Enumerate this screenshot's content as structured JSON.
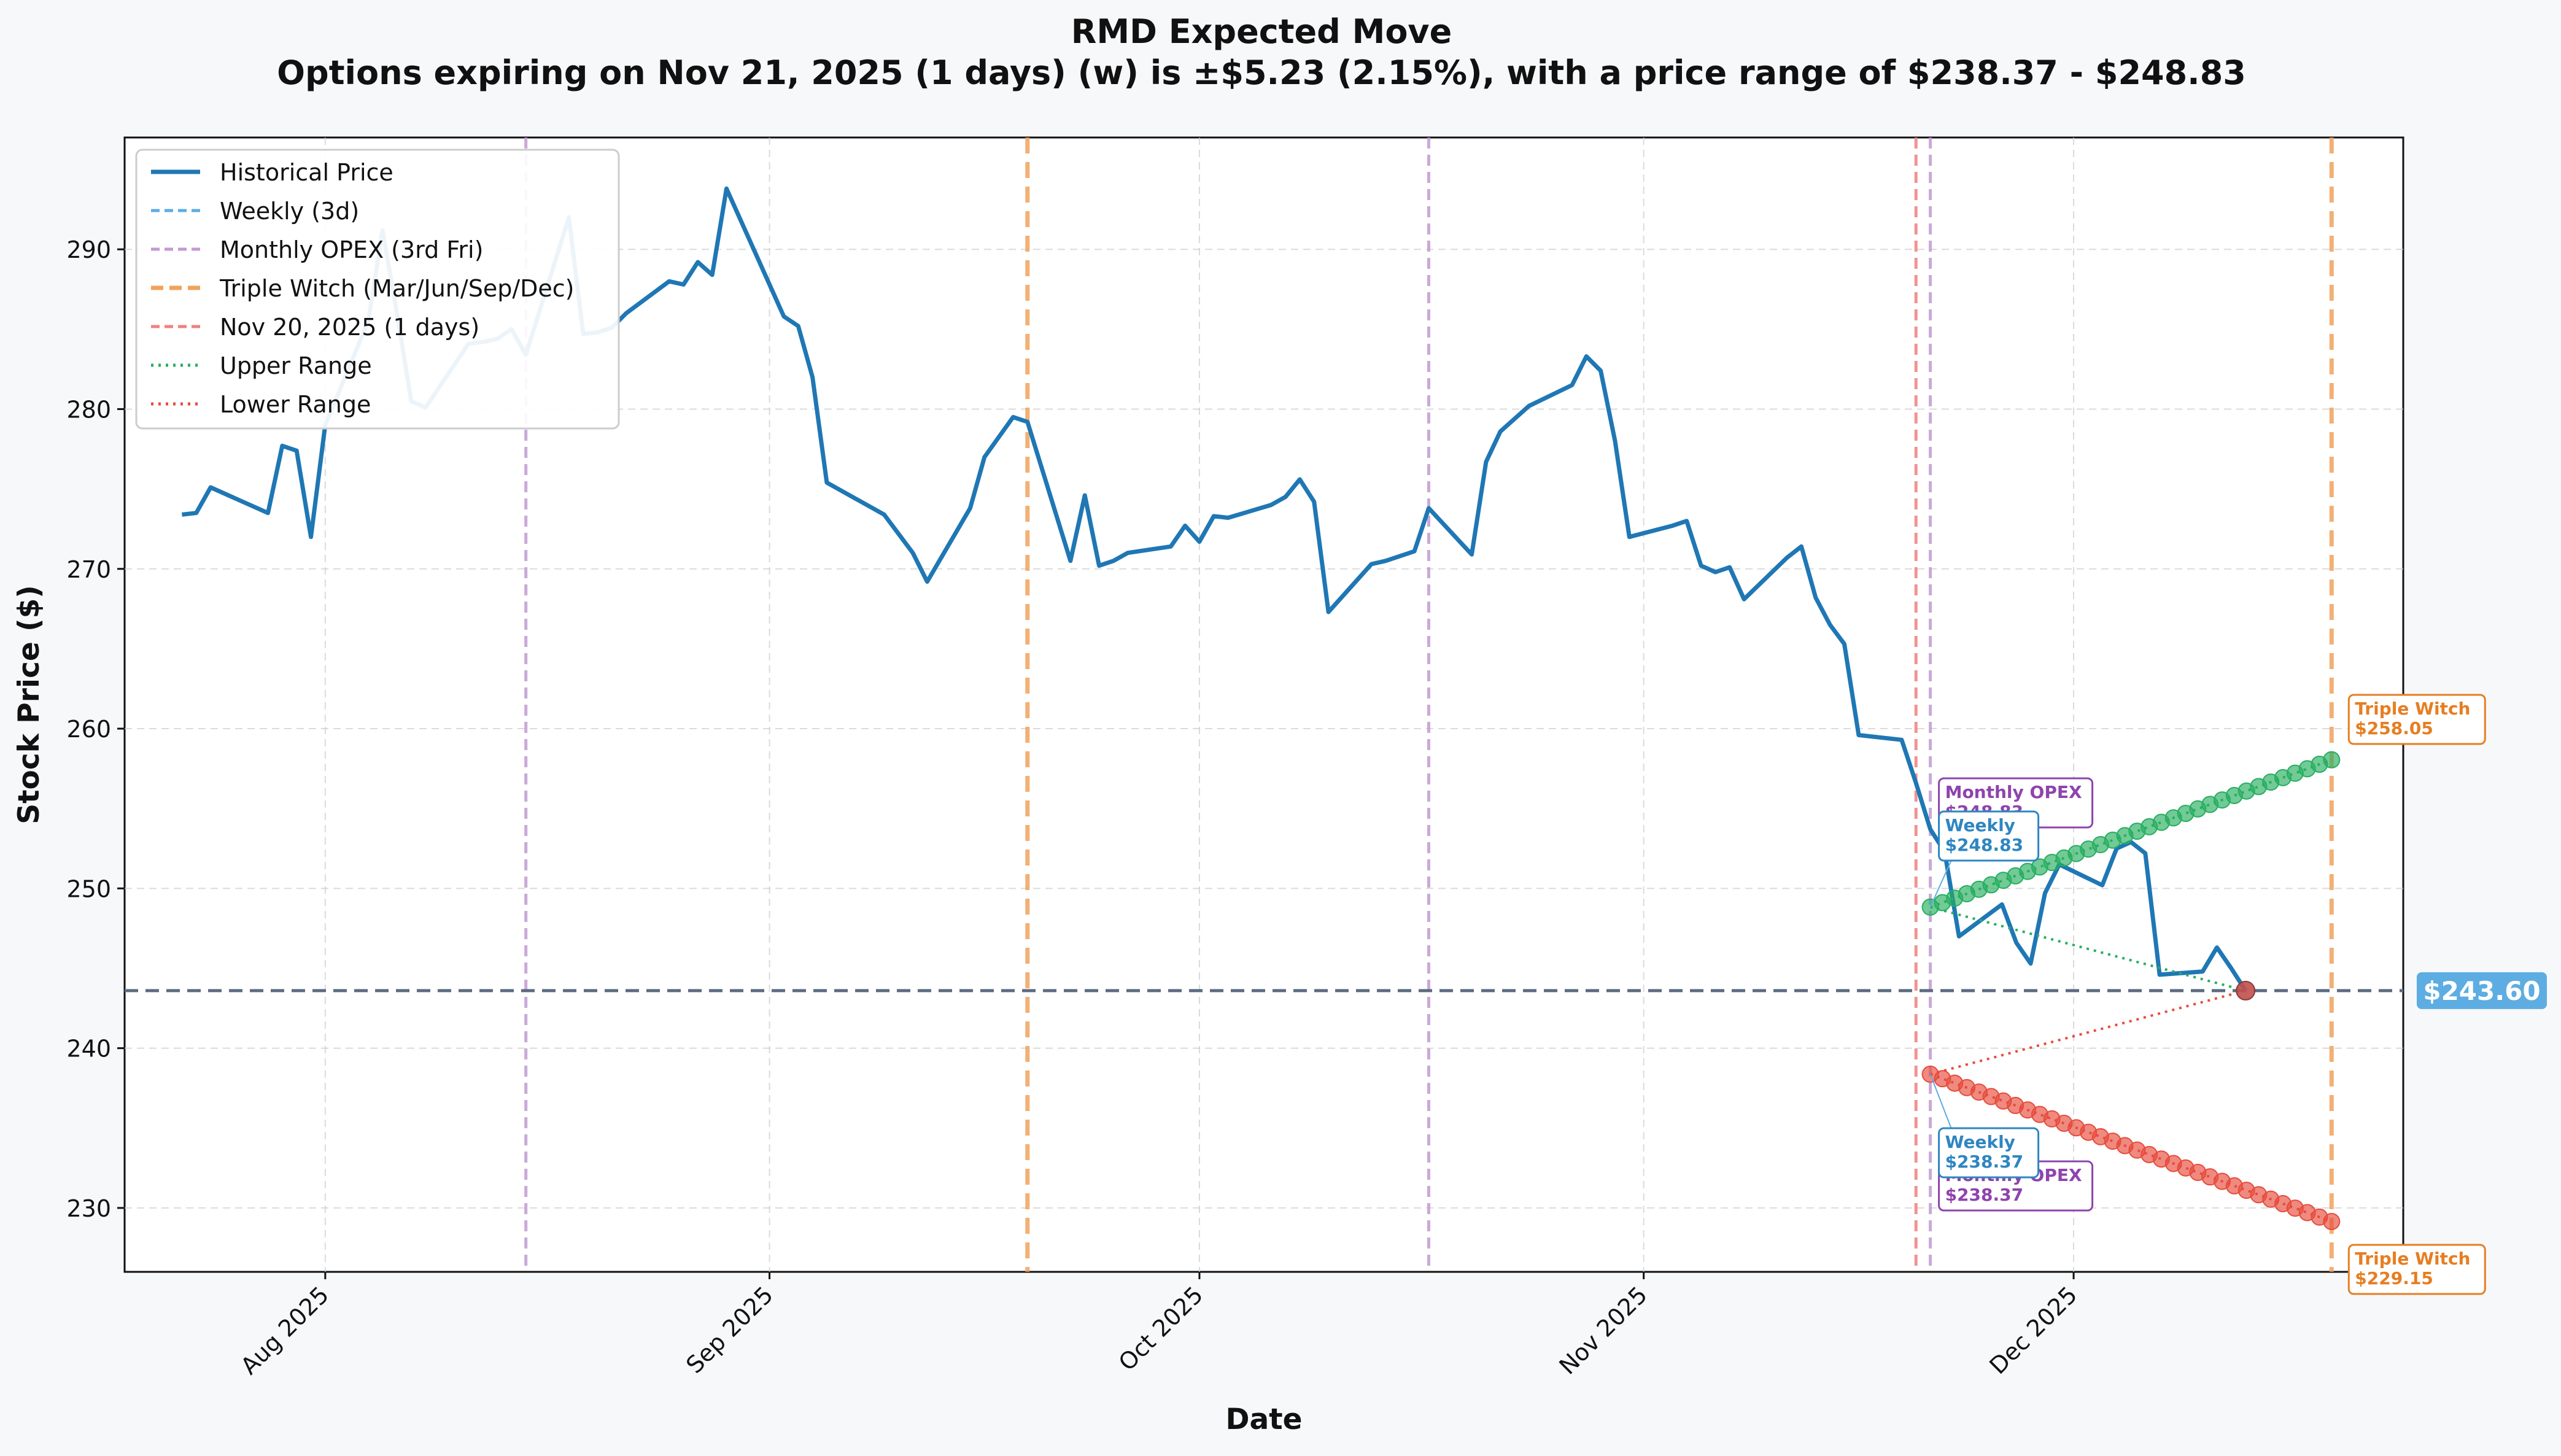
{
  "chart_data": {
    "type": "line",
    "title": "RMD Expected Move",
    "subtitle": "Options expiring on Nov 21, 2025 (1 days) (w) is ±$5.23 (2.15%), with a price range of $238.37 - $248.83",
    "xlabel": "Date",
    "ylabel": "Stock Price ($)",
    "xlim": [
      "2025-07-18",
      "2025-12-24"
    ],
    "ylim": [
      226,
      297
    ],
    "x_ticks": [
      {
        "date": "2025-08-01",
        "label": "Aug 2025"
      },
      {
        "date": "2025-09-01",
        "label": "Sep 2025"
      },
      {
        "date": "2025-10-01",
        "label": "Oct 2025"
      },
      {
        "date": "2025-11-01",
        "label": "Nov 2025"
      },
      {
        "date": "2025-12-01",
        "label": "Dec 2025"
      }
    ],
    "y_ticks": [
      230,
      240,
      250,
      260,
      270,
      280,
      290
    ],
    "grid": true,
    "legend_position": "top-left",
    "legend": [
      {
        "label": "Historical Price",
        "color": "#1f77b4",
        "style": "solid"
      },
      {
        "label": "Weekly (3d)",
        "color": "#5dade2",
        "style": "dashed"
      },
      {
        "label": "Monthly OPEX (3rd Fri)",
        "color": "#c39bd3",
        "style": "dashed"
      },
      {
        "label": "Triple Witch (Mar/Jun/Sep/Dec)",
        "color": "#f0a35e",
        "style": "dashed-thick"
      },
      {
        "label": "Nov 20, 2025 (1 days)",
        "color": "#f08080",
        "style": "dashed"
      },
      {
        "label": "Upper Range",
        "color": "#27ae60",
        "style": "dotted"
      },
      {
        "label": "Lower Range",
        "color": "#e74c3c",
        "style": "dotted"
      }
    ],
    "current_price": 243.6,
    "current_price_label": "$243.60",
    "series": [
      {
        "name": "Historical Price",
        "color": "#1f77b4",
        "points": [
          [
            "2025-07-22",
            273.4
          ],
          [
            "2025-07-23",
            273.5
          ],
          [
            "2025-07-24",
            275.1
          ],
          [
            "2025-07-28",
            273.5
          ],
          [
            "2025-07-29",
            277.7
          ],
          [
            "2025-07-30",
            277.4
          ],
          [
            "2025-07-31",
            272.0
          ],
          [
            "2025-08-01",
            279.0
          ],
          [
            "2025-08-04",
            285.5
          ],
          [
            "2025-08-05",
            291.2
          ],
          [
            "2025-08-06",
            286.0
          ],
          [
            "2025-08-07",
            280.5
          ],
          [
            "2025-08-08",
            280.1
          ],
          [
            "2025-08-11",
            284.1
          ],
          [
            "2025-08-12",
            284.2
          ],
          [
            "2025-08-13",
            284.4
          ],
          [
            "2025-08-14",
            285.0
          ],
          [
            "2025-08-15",
            283.4
          ],
          [
            "2025-08-18",
            292.0
          ],
          [
            "2025-08-19",
            284.7
          ],
          [
            "2025-08-20",
            284.8
          ],
          [
            "2025-08-21",
            285.1
          ],
          [
            "2025-08-22",
            286.0
          ],
          [
            "2025-08-25",
            288.0
          ],
          [
            "2025-08-26",
            287.8
          ],
          [
            "2025-08-27",
            289.2
          ],
          [
            "2025-08-28",
            288.4
          ],
          [
            "2025-08-29",
            293.8
          ],
          [
            "2025-09-02",
            285.8
          ],
          [
            "2025-09-03",
            285.2
          ],
          [
            "2025-09-04",
            282.0
          ],
          [
            "2025-09-05",
            275.4
          ],
          [
            "2025-09-09",
            273.4
          ],
          [
            "2025-09-11",
            271.0
          ],
          [
            "2025-09-12",
            269.2
          ],
          [
            "2025-09-15",
            273.8
          ],
          [
            "2025-09-16",
            277.0
          ],
          [
            "2025-09-18",
            279.5
          ],
          [
            "2025-09-19",
            279.2
          ],
          [
            "2025-09-22",
            270.5
          ],
          [
            "2025-09-23",
            274.6
          ],
          [
            "2025-09-24",
            270.2
          ],
          [
            "2025-09-25",
            270.5
          ],
          [
            "2025-09-26",
            271.0
          ],
          [
            "2025-09-29",
            271.4
          ],
          [
            "2025-09-30",
            272.7
          ],
          [
            "2025-10-01",
            271.7
          ],
          [
            "2025-10-02",
            273.3
          ],
          [
            "2025-10-03",
            273.2
          ],
          [
            "2025-10-06",
            274.0
          ],
          [
            "2025-10-07",
            274.5
          ],
          [
            "2025-10-08",
            275.6
          ],
          [
            "2025-10-09",
            274.2
          ],
          [
            "2025-10-10",
            267.3
          ],
          [
            "2025-10-13",
            270.3
          ],
          [
            "2025-10-14",
            270.5
          ],
          [
            "2025-10-16",
            271.1
          ],
          [
            "2025-10-17",
            273.8
          ],
          [
            "2025-10-20",
            270.9
          ],
          [
            "2025-10-21",
            276.7
          ],
          [
            "2025-10-22",
            278.6
          ],
          [
            "2025-10-24",
            280.2
          ],
          [
            "2025-10-27",
            281.5
          ],
          [
            "2025-10-28",
            283.3
          ],
          [
            "2025-10-29",
            282.4
          ],
          [
            "2025-10-30",
            278.0
          ],
          [
            "2025-10-31",
            272.0
          ],
          [
            "2025-11-03",
            272.7
          ],
          [
            "2025-11-04",
            273.0
          ],
          [
            "2025-11-05",
            270.2
          ],
          [
            "2025-11-06",
            269.8
          ],
          [
            "2025-11-07",
            270.1
          ],
          [
            "2025-11-08",
            268.1
          ],
          [
            "2025-11-11",
            270.7
          ],
          [
            "2025-11-12",
            271.4
          ],
          [
            "2025-11-13",
            268.2
          ],
          [
            "2025-11-14",
            266.5
          ],
          [
            "2025-11-15",
            265.3
          ],
          [
            "2025-11-16",
            259.6
          ],
          [
            "2025-11-19",
            259.3
          ],
          [
            "2025-11-20",
            256.6
          ],
          [
            "2025-11-21",
            253.7
          ],
          [
            "2025-11-22",
            252.3
          ],
          [
            "2025-11-23",
            247.0
          ],
          [
            "2025-11-26",
            249.0
          ],
          [
            "2025-11-27",
            246.6
          ],
          [
            "2025-11-28",
            245.3
          ],
          [
            "2025-11-29",
            249.7
          ],
          [
            "2025-11-30",
            251.5
          ],
          [
            "2025-12-03",
            250.2
          ],
          [
            "2025-12-04",
            252.5
          ],
          [
            "2025-12-05",
            252.9
          ],
          [
            "2025-12-06",
            252.2
          ],
          [
            "2025-12-07",
            244.6
          ],
          [
            "2025-12-10",
            244.8
          ],
          [
            "2025-12-11",
            246.3
          ],
          [
            "2025-12-12",
            245.0
          ],
          [
            "2025-12-13",
            243.6
          ]
        ]
      },
      {
        "name": "Upper Range",
        "color": "#27ae60",
        "start": 248.83,
        "end": 258.05,
        "count": 34
      },
      {
        "name": "Lower Range",
        "color": "#e74c3c",
        "start": 238.37,
        "end": 229.15,
        "count": 34
      }
    ],
    "vertical_lines": [
      {
        "date": "2025-08-15",
        "kind": "monthly",
        "color": "#c39bd3"
      },
      {
        "date": "2025-09-19",
        "kind": "triple",
        "color": "#f0a35e"
      },
      {
        "date": "2025-10-17",
        "kind": "monthly",
        "color": "#c39bd3"
      },
      {
        "date": "2025-11-20",
        "kind": "current",
        "color": "#f08080"
      },
      {
        "date": "2025-11-21",
        "kind": "monthly",
        "color": "#c39bd3"
      },
      {
        "date": "2025-12-19",
        "kind": "triple",
        "color": "#f0a35e"
      }
    ],
    "annotations": [
      {
        "name": "monthly-opex-upper-annotation",
        "lines": [
          "Monthly OPEX",
          "$248.83"
        ],
        "color": "#8e44ad"
      },
      {
        "name": "weekly-upper-annotation",
        "lines": [
          "Weekly",
          "$248.83"
        ],
        "color": "#2e86c1"
      },
      {
        "name": "monthly-opex-lower-annotation",
        "lines": [
          "Monthly OPEX",
          "$238.37"
        ],
        "color": "#8e44ad"
      },
      {
        "name": "weekly-lower-annotation",
        "lines": [
          "Weekly",
          "$238.37"
        ],
        "color": "#2e86c1"
      },
      {
        "name": "triple-witch-upper-annotation",
        "lines": [
          "Triple Witch",
          "$258.05"
        ],
        "color": "#e67e22"
      },
      {
        "name": "triple-witch-lower-annotation",
        "lines": [
          "Triple Witch",
          "$229.15"
        ],
        "color": "#e67e22"
      }
    ]
  }
}
